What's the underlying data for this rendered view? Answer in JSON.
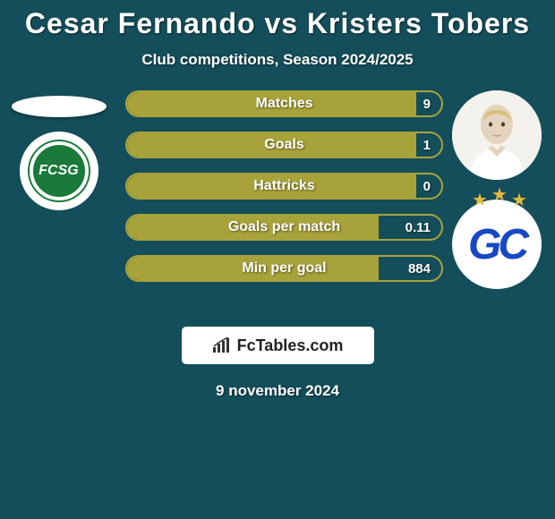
{
  "title": "Cesar Fernando vs Kristers Tobers",
  "subtitle": "Club competitions, Season 2024/2025",
  "date": "9 november 2024",
  "brand": "FcTables.com",
  "colors": {
    "background": "#144e5a",
    "bar_fill": "#a8a23a",
    "bar_border": "#a8a23a",
    "text": "#ffffff",
    "brand_bg": "#ffffff",
    "brand_text": "#222222",
    "left_club_green": "#1a7a3a",
    "right_club_blue": "#1848c4",
    "star": "#e6b83c"
  },
  "left_club_text": "FCSG",
  "right_club_text": "GC",
  "stats": [
    {
      "label": "Matches",
      "value": "9",
      "fill_pct": 92
    },
    {
      "label": "Goals",
      "value": "1",
      "fill_pct": 92
    },
    {
      "label": "Hattricks",
      "value": "0",
      "fill_pct": 92
    },
    {
      "label": "Goals per match",
      "value": "0.11",
      "fill_pct": 80
    },
    {
      "label": "Min per goal",
      "value": "884",
      "fill_pct": 80
    }
  ]
}
